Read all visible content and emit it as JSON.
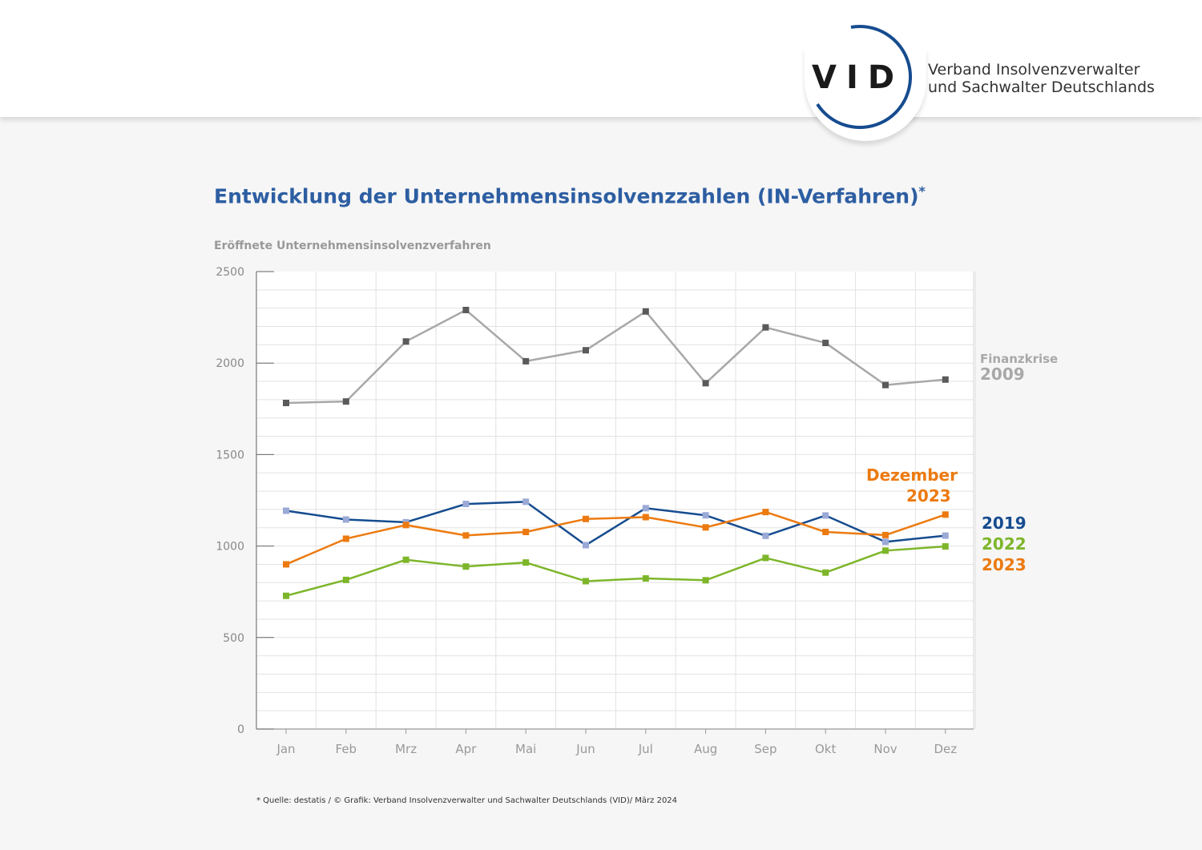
{
  "header": {
    "logo_text": "VID",
    "org_line1": "Verband Insolvenzverwalter",
    "org_line2": "und Sachwalter Deutschlands"
  },
  "colors": {
    "accent": "#2d5ea2",
    "s2009": "#a8a8a8",
    "s2009_marker": "#5a5a5a",
    "s2019": "#164c8f",
    "s2019_marker": "#9aa9d6",
    "s2022": "#7db62a",
    "s2023": "#ec7a10"
  },
  "footnote": "* Quelle: destatis / © Grafik: Verband Insolvenzverwalter und Sachwalter Deutschlands (VID)/ März 2024",
  "chart_data": {
    "type": "line",
    "title": "Entwicklung der Unternehmensinsolvenzzahlen (IN-Verfahren)",
    "title_mark": "*",
    "ylabel": "Eröffnete Unternehmensinsolvenzverfahren",
    "xlabel": "",
    "ylim": [
      0,
      2500
    ],
    "yticks": [
      "0",
      "500",
      "1000",
      "1500",
      "2000",
      "2500"
    ],
    "categories": [
      "Jan",
      "Feb",
      "Mrz",
      "Apr",
      "Mai",
      "Jun",
      "Jul",
      "Aug",
      "Sep",
      "Okt",
      "Nov",
      "Dez"
    ],
    "grid": true,
    "series": [
      {
        "key": "s2009",
        "values": [
          1782,
          1790,
          2118,
          2290,
          2010,
          2070,
          2282,
          1890,
          2195,
          2110,
          1880,
          1910
        ]
      },
      {
        "key": "s2019",
        "values": [
          1193,
          1145,
          1130,
          1230,
          1242,
          1005,
          1207,
          1168,
          1056,
          1167,
          1023,
          1057
        ]
      },
      {
        "key": "s2022",
        "values": [
          728,
          815,
          925,
          888,
          910,
          808,
          823,
          813,
          935,
          855,
          975,
          998
        ]
      },
      {
        "key": "s2023",
        "values": [
          900,
          1040,
          1115,
          1058,
          1077,
          1148,
          1158,
          1102,
          1186,
          1077,
          1060,
          1172
        ]
      }
    ],
    "labels": {
      "finanzkrise": "Finanzkrise",
      "y2009": "2009",
      "dezember": "Dezember",
      "dez2023": "2023",
      "y2019": "2019",
      "y2022": "2022",
      "y2023": "2023"
    }
  }
}
